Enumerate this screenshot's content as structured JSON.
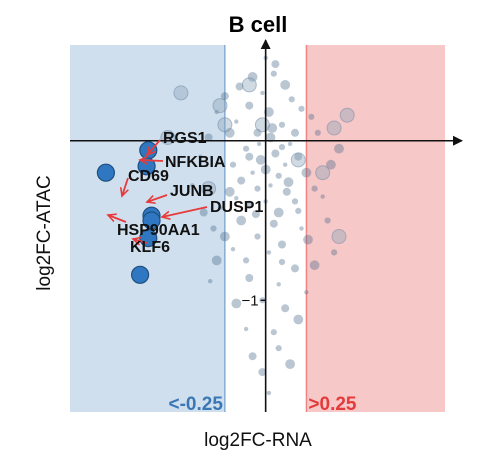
{
  "chart_data": {
    "type": "scatter",
    "title": "B cell",
    "xlabel": "log2FC-RNA",
    "ylabel": "log2FC-ATAC",
    "xlim": [
      -1.2,
      1.1
    ],
    "ylim": [
      -1.7,
      0.6
    ],
    "y_ticks": [
      {
        "value": -1,
        "label": "−1"
      }
    ],
    "thresholds": {
      "negative": {
        "value": -0.25,
        "label": "<-0.25",
        "color": "#3a78b5",
        "band": "#cfdfee"
      },
      "positive": {
        "value": 0.25,
        "label": ">0.25",
        "color": "#e33b3b",
        "band": "#f7c8c8"
      }
    },
    "point_color": "#4a6a8a",
    "highlight_color": "#2f77c0",
    "arrow_color": "#e83a3a",
    "highlighted_genes": [
      {
        "name": "RGS1",
        "x": -0.72,
        "y": -0.06
      },
      {
        "name": "NFKBIA",
        "x": -0.73,
        "y": -0.16
      },
      {
        "name": "CD69",
        "x": -0.98,
        "y": -0.2
      },
      {
        "name": "JUNB",
        "x": -0.7,
        "y": -0.47
      },
      {
        "name": "DUSP1",
        "x": -0.7,
        "y": -0.5
      },
      {
        "name": "HSP90AA1",
        "x": -0.72,
        "y": -0.61
      },
      {
        "name": "KLF6",
        "x": -0.77,
        "y": -0.84
      }
    ],
    "background_points": [
      [
        -0.02,
        0.3
      ],
      [
        0.05,
        0.42
      ],
      [
        -0.1,
        0.22
      ],
      [
        0.02,
        0.18
      ],
      [
        -0.18,
        0.12
      ],
      [
        0.1,
        0.1
      ],
      [
        -0.05,
        0.05
      ],
      [
        0.03,
        0.02
      ],
      [
        0.15,
        -0.02
      ],
      [
        -0.12,
        -0.05
      ],
      [
        0.06,
        -0.08
      ],
      [
        -0.03,
        -0.12
      ],
      [
        0.12,
        -0.15
      ],
      [
        -0.2,
        -0.15
      ],
      [
        0.2,
        -0.1
      ],
      [
        0.0,
        -0.18
      ],
      [
        -0.08,
        -0.2
      ],
      [
        0.08,
        -0.22
      ],
      [
        -0.15,
        -0.25
      ],
      [
        0.25,
        -0.2
      ],
      [
        0.03,
        -0.28
      ],
      [
        -0.05,
        -0.3
      ],
      [
        0.13,
        -0.32
      ],
      [
        -0.22,
        -0.32
      ],
      [
        0.0,
        -0.38
      ],
      [
        0.18,
        -0.38
      ],
      [
        -0.1,
        -0.4
      ],
      [
        0.08,
        -0.45
      ],
      [
        -0.28,
        -0.42
      ],
      [
        0.3,
        -0.3
      ],
      [
        0.05,
        -0.52
      ],
      [
        -0.15,
        -0.5
      ],
      [
        0.22,
        -0.55
      ],
      [
        -0.05,
        -0.6
      ],
      [
        0.1,
        -0.65
      ],
      [
        -0.25,
        -0.6
      ],
      [
        0.02,
        -0.7
      ],
      [
        -0.12,
        -0.75
      ],
      [
        0.18,
        -0.8
      ],
      [
        -0.3,
        -0.75
      ],
      [
        0.08,
        -0.9
      ],
      [
        -0.02,
        -1.0
      ],
      [
        0.12,
        -1.05
      ],
      [
        -0.18,
        -1.02
      ],
      [
        0.25,
        -0.95
      ],
      [
        0.05,
        -1.2
      ],
      [
        -0.08,
        -1.35
      ],
      [
        0.15,
        -1.4
      ],
      [
        0.02,
        -1.58
      ],
      [
        0.32,
        0.05
      ],
      [
        -0.35,
        0.02
      ],
      [
        0.4,
        -0.15
      ],
      [
        -0.4,
        -0.1
      ],
      [
        0.38,
        -0.5
      ],
      [
        -0.38,
        -0.45
      ],
      [
        0.45,
        -0.05
      ],
      [
        -0.45,
        -0.28
      ],
      [
        0.22,
        0.2
      ],
      [
        -0.25,
        0.28
      ],
      [
        0.12,
        0.35
      ],
      [
        -0.3,
        0.18
      ],
      [
        0.28,
        0.15
      ],
      [
        0.18,
        0.05
      ],
      [
        -0.22,
        0.05
      ],
      [
        0.35,
        -0.35
      ],
      [
        -0.32,
        -0.55
      ],
      [
        0.06,
        0.48
      ],
      [
        -0.08,
        0.4
      ],
      [
        0.0,
        0.52
      ],
      [
        0.16,
        0.26
      ],
      [
        -0.16,
        0.34
      ],
      [
        0.04,
        0.08
      ],
      [
        -0.04,
        -0.02
      ],
      [
        0.1,
        -0.04
      ],
      [
        -0.1,
        -0.1
      ],
      [
        0.14,
        -0.26
      ],
      [
        -0.18,
        -0.36
      ],
      [
        0.2,
        -0.44
      ],
      [
        -0.06,
        -0.46
      ],
      [
        0.26,
        -0.62
      ],
      [
        -0.2,
        -0.68
      ],
      [
        0.1,
        -0.76
      ],
      [
        -0.1,
        -0.86
      ],
      [
        0.2,
        -1.12
      ],
      [
        -0.12,
        -1.18
      ],
      [
        0.08,
        -1.3
      ],
      [
        -0.02,
        -1.45
      ],
      [
        0.3,
        -0.78
      ],
      [
        -0.34,
        -0.88
      ],
      [
        0.42,
        -0.7
      ]
    ],
    "big_points": [
      [
        -0.28,
        0.22
      ],
      [
        0.42,
        0.08
      ],
      [
        -0.25,
        0.1
      ],
      [
        0.2,
        -0.12
      ],
      [
        -0.35,
        -0.3
      ],
      [
        0.45,
        -0.6
      ],
      [
        -0.6,
        0.02
      ],
      [
        -0.02,
        0.1
      ],
      [
        0.35,
        -0.2
      ],
      [
        -0.52,
        0.3
      ],
      [
        -0.1,
        0.35
      ],
      [
        0.5,
        0.16
      ]
    ]
  }
}
